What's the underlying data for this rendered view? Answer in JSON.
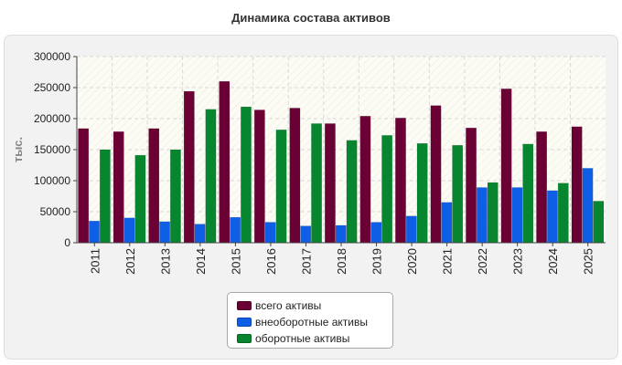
{
  "chart_data": {
    "type": "bar",
    "title": "Динамика состава активов",
    "ylabel": "тыс.",
    "xlabel": "",
    "ylim": [
      0,
      300000
    ],
    "yticks": [
      0,
      50000,
      100000,
      150000,
      200000,
      250000,
      300000
    ],
    "grid": true,
    "legend_position": "bottom",
    "categories": [
      "2011",
      "2012",
      "2013",
      "2014",
      "2015",
      "2016",
      "2017",
      "2018",
      "2019",
      "2020",
      "2021",
      "2022",
      "2023",
      "2024",
      "2025"
    ],
    "series": [
      {
        "name": "всего активы",
        "color": "#6b0034",
        "values": [
          184000,
          179000,
          184000,
          244000,
          260000,
          214000,
          217000,
          192000,
          204000,
          201000,
          221000,
          185000,
          248000,
          179000,
          187000
        ]
      },
      {
        "name": "внеоборотные активы",
        "color": "#0f5fe6",
        "values": [
          35000,
          40000,
          34000,
          30000,
          41000,
          33000,
          27000,
          28000,
          33000,
          43000,
          65000,
          89000,
          89000,
          84000,
          120000
        ]
      },
      {
        "name": "оборотные активы",
        "color": "#07852f",
        "values": [
          150000,
          141000,
          150000,
          215000,
          219000,
          182000,
          192000,
          165000,
          173000,
          160000,
          157000,
          97000,
          159000,
          96000,
          67000
        ]
      }
    ]
  }
}
